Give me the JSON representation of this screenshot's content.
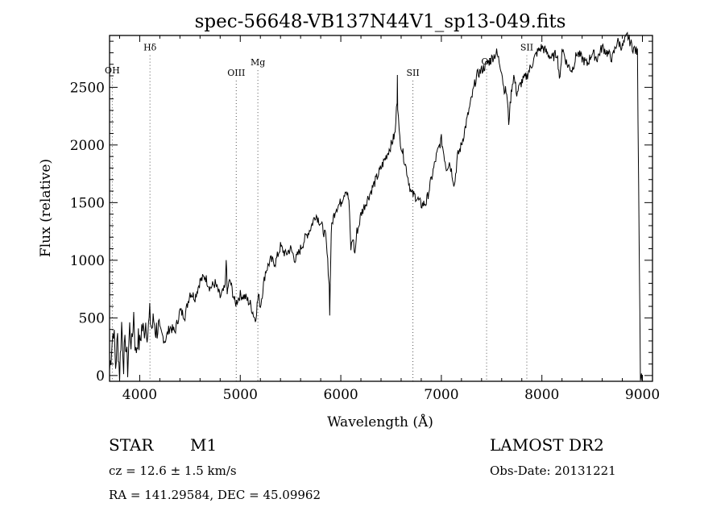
{
  "chart_data": {
    "type": "line",
    "title": "spec-56648-VB137N44V1_sp13-049.fits",
    "xlabel": "Wavelength (Å)",
    "ylabel": "Flux (relative)",
    "xlim": [
      3700,
      9100
    ],
    "ylim": [
      -50,
      2950
    ],
    "x_ticks": [
      4000,
      5000,
      6000,
      7000,
      8000,
      9000
    ],
    "y_ticks": [
      0,
      500,
      1000,
      1500,
      2000,
      2500
    ],
    "grid": false,
    "legend": "none",
    "line_color": "#000000",
    "marker_style": "dotted vertical lines",
    "lines": [
      {
        "label": "OH",
        "x": 3727,
        "label_y": 2620
      },
      {
        "label": "Hδ",
        "x": 4102,
        "label_y": 2820
      },
      {
        "label": "OIII",
        "x": 4960,
        "label_y": 2600
      },
      {
        "label": "Mg",
        "x": 5175,
        "label_y": 2690
      },
      {
        "label": "SII",
        "x": 6717,
        "label_y": 2600
      },
      {
        "label": "OI",
        "x": 7450,
        "label_y": 2700
      },
      {
        "label": "SII",
        "x": 7850,
        "label_y": 2820
      }
    ],
    "series": [
      {
        "x": [
          3700,
          3720,
          3740,
          3760,
          3780,
          3800,
          3820,
          3840,
          3860,
          3880,
          3900,
          3920,
          3940,
          3960,
          3980,
          4000,
          4020,
          4040,
          4060,
          4080,
          4100,
          4120,
          4140,
          4160,
          4180,
          4200,
          4250,
          4300,
          4350,
          4400,
          4450,
          4500,
          4550,
          4600,
          4650,
          4700,
          4750,
          4800,
          4850,
          4860,
          4870,
          4880,
          4900,
          4950,
          5000,
          5050,
          5100,
          5150,
          5180,
          5200,
          5250,
          5300,
          5350,
          5400,
          5450,
          5500,
          5550,
          5600,
          5650,
          5700,
          5750,
          5800,
          5850,
          5870,
          5885,
          5890,
          5895,
          5905,
          5920,
          5950,
          6000,
          6050,
          6080,
          6100,
          6120,
          6140,
          6160,
          6180,
          6200,
          6250,
          6300,
          6350,
          6400,
          6450,
          6500,
          6540,
          6560,
          6563,
          6566,
          6580,
          6600,
          6650,
          6700,
          6750,
          6800,
          6850,
          6900,
          6950,
          7000,
          7050,
          7080,
          7100,
          7130,
          7160,
          7200,
          7250,
          7300,
          7350,
          7400,
          7450,
          7500,
          7550,
          7600,
          7620,
          7650,
          7670,
          7690,
          7700,
          7720,
          7750,
          7800,
          7850,
          7900,
          7950,
          8000,
          8050,
          8100,
          8150,
          8180,
          8200,
          8250,
          8300,
          8350,
          8400,
          8450,
          8500,
          8550,
          8600,
          8650,
          8700,
          8750,
          8800,
          8850,
          8900,
          8950,
          8980,
          8990,
          9000
        ],
        "values": [
          50,
          250,
          420,
          80,
          330,
          10,
          450,
          120,
          300,
          60,
          420,
          250,
          540,
          180,
          330,
          260,
          420,
          380,
          470,
          360,
          520,
          410,
          480,
          390,
          420,
          390,
          300,
          420,
          380,
          560,
          520,
          720,
          680,
          820,
          860,
          760,
          800,
          680,
          760,
          1040,
          700,
          780,
          820,
          620,
          700,
          680,
          620,
          480,
          700,
          600,
          900,
          1000,
          980,
          1120,
          1050,
          1100,
          1000,
          1100,
          1200,
          1280,
          1400,
          1320,
          1200,
          980,
          780,
          560,
          800,
          1250,
          1350,
          1450,
          1500,
          1620,
          1520,
          1100,
          1200,
          1050,
          1250,
          1300,
          1400,
          1500,
          1600,
          1700,
          1800,
          1900,
          2000,
          2100,
          2400,
          2640,
          2350,
          2100,
          2000,
          1800,
          1580,
          1550,
          1480,
          1500,
          1700,
          1900,
          2050,
          1800,
          1850,
          1780,
          1650,
          1900,
          2000,
          2200,
          2400,
          2600,
          2650,
          2700,
          2750,
          2800,
          2650,
          2500,
          2450,
          2200,
          2400,
          2500,
          2600,
          2450,
          2550,
          2600,
          2700,
          2800,
          2850,
          2800,
          2750,
          2800,
          2550,
          2850,
          2700,
          2650,
          2800,
          2750,
          2700,
          2800,
          2750,
          2850,
          2800,
          2750,
          2900,
          2850,
          2950,
          2850,
          2800,
          0,
          0,
          0
        ]
      }
    ]
  },
  "info": {
    "object_class": "STAR",
    "subclass": "M1",
    "survey": "LAMOST DR2",
    "cz": "cz = 12.6 ± 1.5 km/s",
    "obs_date": "Obs-Date: 20131221",
    "coords": "RA = 141.29584, DEC =  45.09962"
  }
}
